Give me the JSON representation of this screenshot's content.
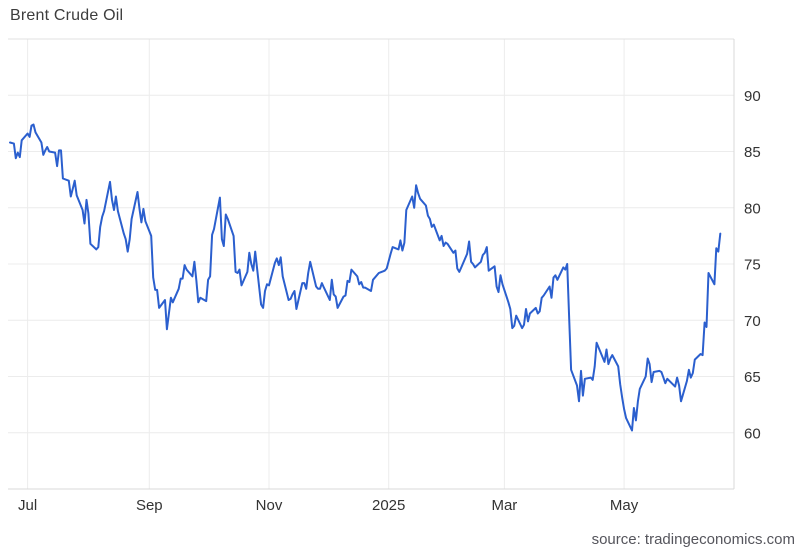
{
  "chart_data": {
    "type": "line",
    "title": "Brent Crude Oil",
    "source_label": "source: tradingeconomics.com",
    "grid": true,
    "legend": false,
    "colors": {
      "line": "#2b5fce",
      "grid": "#ececec",
      "plot_border": "#e0e0e0",
      "axis_line": "#d9d9d9",
      "title_text": "#3d3d3d",
      "tick_text": "#333333",
      "source_text": "#55555c",
      "background": "#ffffff"
    },
    "y_axis": {
      "position": "right",
      "range": [
        55,
        95
      ],
      "ticks": [
        60,
        65,
        70,
        75,
        80,
        85,
        90
      ]
    },
    "x_axis": {
      "position": "bottom",
      "range": [
        "2024-06-21",
        "2025-06-26"
      ],
      "ticks": [
        {
          "date": "2024-07-01",
          "label": "Jul"
        },
        {
          "date": "2024-09-01",
          "label": "Sep"
        },
        {
          "date": "2024-11-01",
          "label": "Nov"
        },
        {
          "date": "2025-01-01",
          "label": "2025"
        },
        {
          "date": "2025-03-01",
          "label": "Mar"
        },
        {
          "date": "2025-05-01",
          "label": "May"
        }
      ]
    },
    "series": [
      {
        "name": "Brent Crude Oil",
        "points": [
          [
            "2024-06-22",
            85.8
          ],
          [
            "2024-06-24",
            85.7
          ],
          [
            "2024-06-25",
            84.4
          ],
          [
            "2024-06-26",
            84.9
          ],
          [
            "2024-06-27",
            84.5
          ],
          [
            "2024-06-28",
            86.0
          ],
          [
            "2024-07-01",
            86.6
          ],
          [
            "2024-07-02",
            86.3
          ],
          [
            "2024-07-03",
            87.3
          ],
          [
            "2024-07-04",
            87.4
          ],
          [
            "2024-07-05",
            86.7
          ],
          [
            "2024-07-08",
            85.8
          ],
          [
            "2024-07-09",
            84.7
          ],
          [
            "2024-07-10",
            85.1
          ],
          [
            "2024-07-11",
            85.4
          ],
          [
            "2024-07-12",
            85.0
          ],
          [
            "2024-07-15",
            84.9
          ],
          [
            "2024-07-16",
            83.7
          ],
          [
            "2024-07-17",
            85.1
          ],
          [
            "2024-07-18",
            85.1
          ],
          [
            "2024-07-19",
            82.6
          ],
          [
            "2024-07-22",
            82.4
          ],
          [
            "2024-07-23",
            81.0
          ],
          [
            "2024-07-24",
            81.7
          ],
          [
            "2024-07-25",
            82.4
          ],
          [
            "2024-07-26",
            81.1
          ],
          [
            "2024-07-29",
            79.8
          ],
          [
            "2024-07-30",
            78.6
          ],
          [
            "2024-07-31",
            80.7
          ],
          [
            "2024-08-01",
            79.5
          ],
          [
            "2024-08-02",
            76.8
          ],
          [
            "2024-08-05",
            76.3
          ],
          [
            "2024-08-06",
            76.5
          ],
          [
            "2024-08-07",
            78.3
          ],
          [
            "2024-08-08",
            79.2
          ],
          [
            "2024-08-09",
            79.7
          ],
          [
            "2024-08-12",
            82.3
          ],
          [
            "2024-08-13",
            80.7
          ],
          [
            "2024-08-14",
            79.8
          ],
          [
            "2024-08-15",
            81.0
          ],
          [
            "2024-08-16",
            79.7
          ],
          [
            "2024-08-19",
            77.7
          ],
          [
            "2024-08-20",
            77.2
          ],
          [
            "2024-08-21",
            76.1
          ],
          [
            "2024-08-22",
            77.2
          ],
          [
            "2024-08-23",
            79.0
          ],
          [
            "2024-08-26",
            81.4
          ],
          [
            "2024-08-27",
            79.9
          ],
          [
            "2024-08-28",
            78.7
          ],
          [
            "2024-08-29",
            79.9
          ],
          [
            "2024-08-30",
            78.8
          ],
          [
            "2024-09-02",
            77.5
          ],
          [
            "2024-09-03",
            73.8
          ],
          [
            "2024-09-04",
            72.7
          ],
          [
            "2024-09-05",
            72.7
          ],
          [
            "2024-09-06",
            71.1
          ],
          [
            "2024-09-09",
            71.8
          ],
          [
            "2024-09-10",
            69.2
          ],
          [
            "2024-09-11",
            70.6
          ],
          [
            "2024-09-12",
            72.0
          ],
          [
            "2024-09-13",
            71.6
          ],
          [
            "2024-09-16",
            72.8
          ],
          [
            "2024-09-17",
            73.7
          ],
          [
            "2024-09-18",
            73.7
          ],
          [
            "2024-09-19",
            74.9
          ],
          [
            "2024-09-20",
            74.5
          ],
          [
            "2024-09-23",
            73.9
          ],
          [
            "2024-09-24",
            75.2
          ],
          [
            "2024-09-25",
            73.5
          ],
          [
            "2024-09-26",
            71.6
          ],
          [
            "2024-09-27",
            72.0
          ],
          [
            "2024-09-30",
            71.7
          ],
          [
            "2024-10-01",
            73.6
          ],
          [
            "2024-10-02",
            73.9
          ],
          [
            "2024-10-03",
            77.6
          ],
          [
            "2024-10-04",
            78.1
          ],
          [
            "2024-10-07",
            80.9
          ],
          [
            "2024-10-08",
            77.2
          ],
          [
            "2024-10-09",
            76.6
          ],
          [
            "2024-10-10",
            79.4
          ],
          [
            "2024-10-11",
            79.0
          ],
          [
            "2024-10-14",
            77.5
          ],
          [
            "2024-10-15",
            74.3
          ],
          [
            "2024-10-16",
            74.2
          ],
          [
            "2024-10-17",
            74.5
          ],
          [
            "2024-10-18",
            73.1
          ],
          [
            "2024-10-21",
            74.3
          ],
          [
            "2024-10-22",
            76.0
          ],
          [
            "2024-10-23",
            75.0
          ],
          [
            "2024-10-24",
            74.4
          ],
          [
            "2024-10-25",
            76.1
          ],
          [
            "2024-10-28",
            71.4
          ],
          [
            "2024-10-29",
            71.1
          ],
          [
            "2024-10-30",
            72.6
          ],
          [
            "2024-10-31",
            73.2
          ],
          [
            "2024-11-01",
            73.1
          ],
          [
            "2024-11-04",
            75.1
          ],
          [
            "2024-11-05",
            75.5
          ],
          [
            "2024-11-06",
            74.9
          ],
          [
            "2024-11-07",
            75.6
          ],
          [
            "2024-11-08",
            73.9
          ],
          [
            "2024-11-11",
            71.8
          ],
          [
            "2024-11-12",
            71.9
          ],
          [
            "2024-11-13",
            72.3
          ],
          [
            "2024-11-14",
            72.6
          ],
          [
            "2024-11-15",
            71.0
          ],
          [
            "2024-11-18",
            73.3
          ],
          [
            "2024-11-19",
            73.3
          ],
          [
            "2024-11-20",
            72.8
          ],
          [
            "2024-11-21",
            74.2
          ],
          [
            "2024-11-22",
            75.2
          ],
          [
            "2024-11-25",
            73.0
          ],
          [
            "2024-11-26",
            72.8
          ],
          [
            "2024-11-27",
            72.8
          ],
          [
            "2024-11-28",
            73.3
          ],
          [
            "2024-11-29",
            72.9
          ],
          [
            "2024-12-02",
            71.8
          ],
          [
            "2024-12-03",
            73.6
          ],
          [
            "2024-12-04",
            72.3
          ],
          [
            "2024-12-05",
            72.1
          ],
          [
            "2024-12-06",
            71.1
          ],
          [
            "2024-12-09",
            72.1
          ],
          [
            "2024-12-10",
            72.2
          ],
          [
            "2024-12-11",
            73.5
          ],
          [
            "2024-12-12",
            73.4
          ],
          [
            "2024-12-13",
            74.5
          ],
          [
            "2024-12-16",
            73.9
          ],
          [
            "2024-12-17",
            73.2
          ],
          [
            "2024-12-18",
            73.4
          ],
          [
            "2024-12-19",
            72.9
          ],
          [
            "2024-12-20",
            72.9
          ],
          [
            "2024-12-23",
            72.6
          ],
          [
            "2024-12-24",
            73.6
          ],
          [
            "2024-12-27",
            74.2
          ],
          [
            "2024-12-30",
            74.4
          ],
          [
            "2024-12-31",
            74.6
          ],
          [
            "2025-01-02",
            75.9
          ],
          [
            "2025-01-03",
            76.5
          ],
          [
            "2025-01-06",
            76.3
          ],
          [
            "2025-01-07",
            77.1
          ],
          [
            "2025-01-08",
            76.2
          ],
          [
            "2025-01-09",
            76.9
          ],
          [
            "2025-01-10",
            79.8
          ],
          [
            "2025-01-13",
            81.0
          ],
          [
            "2025-01-14",
            80.0
          ],
          [
            "2025-01-15",
            82.0
          ],
          [
            "2025-01-16",
            81.3
          ],
          [
            "2025-01-17",
            80.8
          ],
          [
            "2025-01-20",
            80.2
          ],
          [
            "2025-01-21",
            79.3
          ],
          [
            "2025-01-22",
            79.0
          ],
          [
            "2025-01-23",
            78.3
          ],
          [
            "2025-01-24",
            78.5
          ],
          [
            "2025-01-27",
            77.1
          ],
          [
            "2025-01-28",
            77.5
          ],
          [
            "2025-01-29",
            76.6
          ],
          [
            "2025-01-30",
            76.9
          ],
          [
            "2025-01-31",
            76.8
          ],
          [
            "2025-02-03",
            76.0
          ],
          [
            "2025-02-04",
            76.2
          ],
          [
            "2025-02-05",
            74.6
          ],
          [
            "2025-02-06",
            74.3
          ],
          [
            "2025-02-07",
            74.7
          ],
          [
            "2025-02-10",
            75.9
          ],
          [
            "2025-02-11",
            77.0
          ],
          [
            "2025-02-12",
            75.2
          ],
          [
            "2025-02-13",
            75.0
          ],
          [
            "2025-02-14",
            74.7
          ],
          [
            "2025-02-17",
            75.2
          ],
          [
            "2025-02-18",
            75.8
          ],
          [
            "2025-02-19",
            76.0
          ],
          [
            "2025-02-20",
            76.5
          ],
          [
            "2025-02-21",
            74.4
          ],
          [
            "2025-02-24",
            74.8
          ],
          [
            "2025-02-25",
            73.0
          ],
          [
            "2025-02-26",
            72.5
          ],
          [
            "2025-02-27",
            74.0
          ],
          [
            "2025-02-28",
            73.2
          ],
          [
            "2025-03-03",
            71.6
          ],
          [
            "2025-03-04",
            71.0
          ],
          [
            "2025-03-05",
            69.3
          ],
          [
            "2025-03-06",
            69.5
          ],
          [
            "2025-03-07",
            70.4
          ],
          [
            "2025-03-10",
            69.3
          ],
          [
            "2025-03-11",
            69.6
          ],
          [
            "2025-03-12",
            71.0
          ],
          [
            "2025-03-13",
            69.9
          ],
          [
            "2025-03-14",
            70.6
          ],
          [
            "2025-03-17",
            71.1
          ],
          [
            "2025-03-18",
            70.6
          ],
          [
            "2025-03-19",
            70.8
          ],
          [
            "2025-03-20",
            72.0
          ],
          [
            "2025-03-21",
            72.2
          ],
          [
            "2025-03-24",
            73.0
          ],
          [
            "2025-03-25",
            72.0
          ],
          [
            "2025-03-26",
            73.8
          ],
          [
            "2025-03-27",
            74.0
          ],
          [
            "2025-03-28",
            73.6
          ],
          [
            "2025-03-31",
            74.7
          ],
          [
            "2025-04-01",
            74.5
          ],
          [
            "2025-04-02",
            75.0
          ],
          [
            "2025-04-03",
            70.1
          ],
          [
            "2025-04-04",
            65.6
          ],
          [
            "2025-04-07",
            64.2
          ],
          [
            "2025-04-08",
            62.8
          ],
          [
            "2025-04-09",
            65.5
          ],
          [
            "2025-04-10",
            63.3
          ],
          [
            "2025-04-11",
            64.8
          ],
          [
            "2025-04-14",
            64.9
          ],
          [
            "2025-04-15",
            64.7
          ],
          [
            "2025-04-16",
            65.9
          ],
          [
            "2025-04-17",
            68.0
          ],
          [
            "2025-04-21",
            66.3
          ],
          [
            "2025-04-22",
            67.4
          ],
          [
            "2025-04-23",
            66.1
          ],
          [
            "2025-04-24",
            66.6
          ],
          [
            "2025-04-25",
            66.9
          ],
          [
            "2025-04-28",
            65.9
          ],
          [
            "2025-04-29",
            64.3
          ],
          [
            "2025-04-30",
            63.1
          ],
          [
            "2025-05-01",
            62.1
          ],
          [
            "2025-05-02",
            61.3
          ],
          [
            "2025-05-05",
            60.2
          ],
          [
            "2025-05-06",
            62.2
          ],
          [
            "2025-05-07",
            61.1
          ],
          [
            "2025-05-08",
            62.8
          ],
          [
            "2025-05-09",
            63.9
          ],
          [
            "2025-05-12",
            65.0
          ],
          [
            "2025-05-13",
            66.6
          ],
          [
            "2025-05-14",
            66.1
          ],
          [
            "2025-05-15",
            64.5
          ],
          [
            "2025-05-16",
            65.4
          ],
          [
            "2025-05-19",
            65.5
          ],
          [
            "2025-05-20",
            65.4
          ],
          [
            "2025-05-21",
            64.9
          ],
          [
            "2025-05-22",
            64.4
          ],
          [
            "2025-05-23",
            64.8
          ],
          [
            "2025-05-27",
            64.1
          ],
          [
            "2025-05-28",
            64.9
          ],
          [
            "2025-05-29",
            64.2
          ],
          [
            "2025-05-30",
            62.8
          ],
          [
            "2025-06-02",
            64.6
          ],
          [
            "2025-06-03",
            65.6
          ],
          [
            "2025-06-04",
            64.9
          ],
          [
            "2025-06-05",
            65.3
          ],
          [
            "2025-06-06",
            66.5
          ],
          [
            "2025-06-09",
            67.0
          ],
          [
            "2025-06-10",
            66.9
          ],
          [
            "2025-06-11",
            69.8
          ],
          [
            "2025-06-12",
            69.4
          ],
          [
            "2025-06-13",
            74.2
          ],
          [
            "2025-06-16",
            73.2
          ],
          [
            "2025-06-17",
            76.4
          ],
          [
            "2025-06-18",
            76.1
          ],
          [
            "2025-06-19",
            77.7
          ]
        ]
      }
    ]
  }
}
